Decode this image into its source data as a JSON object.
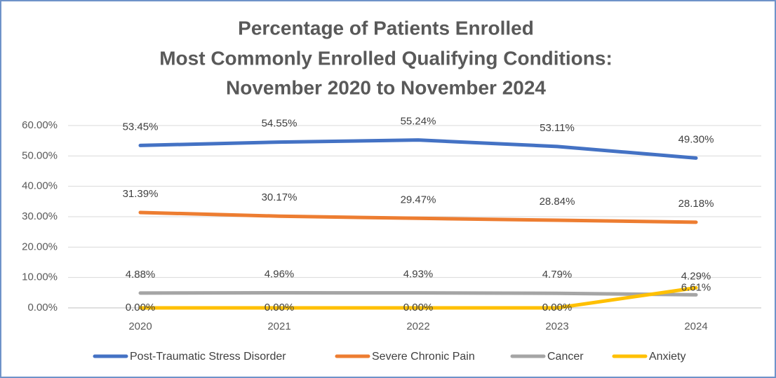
{
  "chart_data": {
    "type": "line",
    "title": [
      "Percentage of Patients Enrolled",
      "Most Commonly Enrolled Qualifying Conditions:",
      "November 2020 to November 2024"
    ],
    "categories": [
      "2020",
      "2021",
      "2022",
      "2023",
      "2024"
    ],
    "series": [
      {
        "name": "Post-Traumatic Stress Disorder",
        "color": "#4472c4",
        "values": [
          53.45,
          54.55,
          55.24,
          53.11,
          49.3
        ],
        "value_labels": [
          "53.45%",
          "54.55%",
          "55.24%",
          "53.11%",
          "49.30%"
        ]
      },
      {
        "name": "Severe Chronic Pain",
        "color": "#ed7d31",
        "values": [
          31.39,
          30.17,
          29.47,
          28.84,
          28.18
        ],
        "value_labels": [
          "31.39%",
          "30.17%",
          "29.47%",
          "28.84%",
          "28.18%"
        ]
      },
      {
        "name": "Cancer",
        "color": "#a5a5a5",
        "values": [
          4.88,
          4.96,
          4.93,
          4.79,
          4.29
        ],
        "value_labels": [
          "4.88%",
          "4.96%",
          "4.93%",
          "4.79%",
          "4.29%"
        ]
      },
      {
        "name": "Anxiety",
        "color": "#ffc000",
        "values": [
          0,
          0,
          0,
          0,
          6.61
        ],
        "value_labels": [
          "0.00%",
          "0.00%",
          "0.00%",
          "0.00%",
          "6.61%"
        ]
      }
    ],
    "ylim": [
      0,
      60
    ],
    "yticks": [
      {
        "value": 0,
        "label": "0.00%"
      },
      {
        "value": 10,
        "label": "10.00%"
      },
      {
        "value": 20,
        "label": "20.00%"
      },
      {
        "value": 30,
        "label": "30.00%"
      },
      {
        "value": 40,
        "label": "40.00%"
      },
      {
        "value": 50,
        "label": "50.00%"
      },
      {
        "value": 60,
        "label": "60.00%"
      }
    ],
    "grid": true,
    "legend": "bottom"
  }
}
